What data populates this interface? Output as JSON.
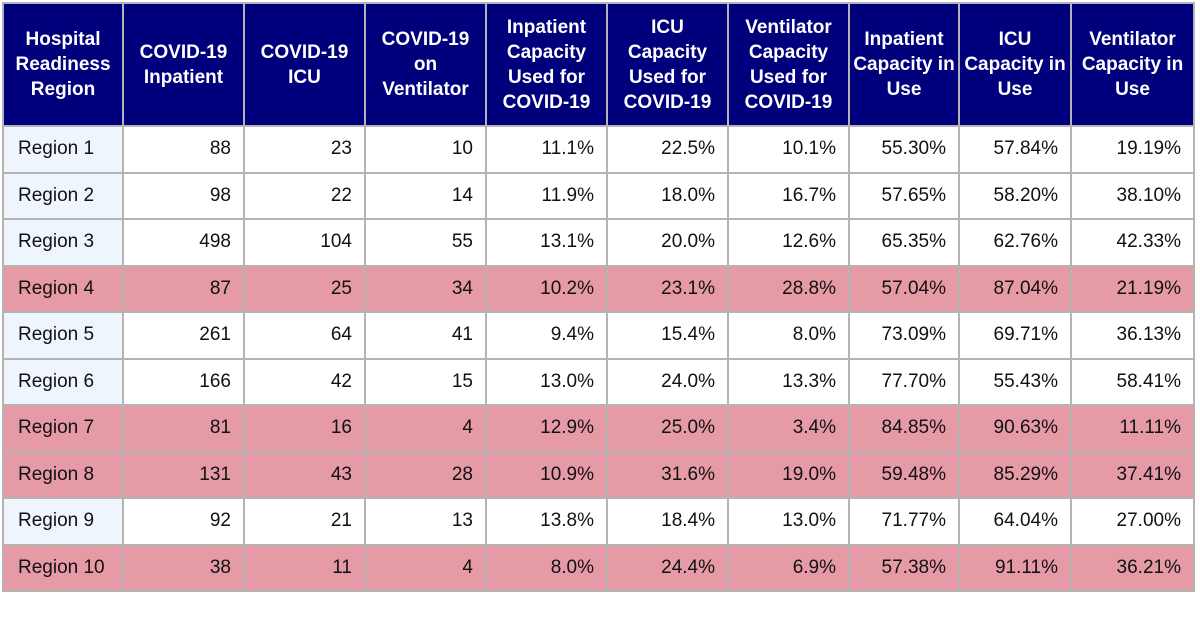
{
  "table": {
    "headers": [
      "Hospital Readiness Region",
      "COVID-19 Inpatient",
      "COVID-19 ICU",
      "COVID-19 on Ventilator",
      "Inpatient Capacity Used for COVID-19",
      "ICU Capacity Used for COVID-19",
      "Ventilator Capacity Used for COVID-19",
      "Inpatient Capacity in Use",
      "ICU Capacity in Use",
      "Ventilator Capacity in Use"
    ],
    "rows": [
      {
        "cells": [
          "Region 1",
          "88",
          "23",
          "10",
          "11.1%",
          "22.5%",
          "10.1%",
          "55.30%",
          "57.84%",
          "19.19%"
        ],
        "highlight": false
      },
      {
        "cells": [
          "Region 2",
          "98",
          "22",
          "14",
          "11.9%",
          "18.0%",
          "16.7%",
          "57.65%",
          "58.20%",
          "38.10%"
        ],
        "highlight": false
      },
      {
        "cells": [
          "Region 3",
          "498",
          "104",
          "55",
          "13.1%",
          "20.0%",
          "12.6%",
          "65.35%",
          "62.76%",
          "42.33%"
        ],
        "highlight": false
      },
      {
        "cells": [
          "Region 4",
          "87",
          "25",
          "34",
          "10.2%",
          "23.1%",
          "28.8%",
          "57.04%",
          "87.04%",
          "21.19%"
        ],
        "highlight": true
      },
      {
        "cells": [
          "Region 5",
          "261",
          "64",
          "41",
          "9.4%",
          "15.4%",
          "8.0%",
          "73.09%",
          "69.71%",
          "36.13%"
        ],
        "highlight": false
      },
      {
        "cells": [
          "Region 6",
          "166",
          "42",
          "15",
          "13.0%",
          "24.0%",
          "13.3%",
          "77.70%",
          "55.43%",
          "58.41%"
        ],
        "highlight": false
      },
      {
        "cells": [
          "Region 7",
          "81",
          "16",
          "4",
          "12.9%",
          "25.0%",
          "3.4%",
          "84.85%",
          "90.63%",
          "11.11%"
        ],
        "highlight": true
      },
      {
        "cells": [
          "Region 8",
          "131",
          "43",
          "28",
          "10.9%",
          "31.6%",
          "19.0%",
          "59.48%",
          "85.29%",
          "37.41%"
        ],
        "highlight": true
      },
      {
        "cells": [
          "Region 9",
          "92",
          "21",
          "13",
          "13.8%",
          "18.4%",
          "13.0%",
          "71.77%",
          "64.04%",
          "27.00%"
        ],
        "highlight": false
      },
      {
        "cells": [
          "Region 10",
          "38",
          "11",
          "4",
          "8.0%",
          "24.4%",
          "6.9%",
          "57.38%",
          "91.11%",
          "36.21%"
        ],
        "highlight": true
      }
    ]
  }
}
